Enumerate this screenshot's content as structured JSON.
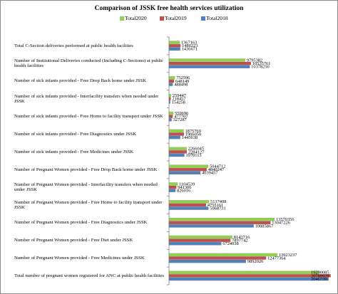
{
  "chart_data": {
    "type": "bar",
    "orientation": "horizontal",
    "title": "Comparison of JSSK free health services utilization",
    "legend_position": "top",
    "categories": [
      "Total C-Section deliveries performed  at public health facilities",
      "Number of Institutional Deliveries conducted (Including C-Sections) at public health facilities",
      "Number of sick infants provided - Free Drop Back home under JSSK",
      "Number of sick infants provided - Interfacility transfers when needed under JSSK",
      "Number of sick infants provided - Free Home to facility transport under JSSK",
      "Number of sick infants provided - Free Diagnostics under JSSK",
      "Number of sick infants provided - Free Medicines under JSSK",
      "Number of Pregnant Women provided - Free Drop Back home under JSSK",
      "Number of Pregnant Women provided - Interfacility transfers when needed under JSSK",
      "Number of Pregnant Women provided - Free Home to facility transport under JSSK",
      "Number of Pregnant Women provided - Free Diagnostics under JSSK",
      "Number of Pregnant Women provided - Free Diet under JSSK",
      "Number of Pregnant Women provided - Free Medicines under JSSK",
      "Total number of pregnant women registered for ANC at public health facilities"
    ],
    "series": [
      {
        "name": "Total2020",
        "color": "#92D050",
        "values": [
          1367163,
          9795382,
          752596,
          259447,
          559696,
          1875769,
          2266045,
          5044712,
          1104539,
          5137408,
          13570356,
          8143716,
          13923237,
          19290085
        ],
        "labels": [
          "1367163",
          "9795382",
          "752596",
          "259447",
          "559696",
          "1875769",
          "2266045",
          "5044712",
          "1104539",
          "5137408",
          "13570356",
          "8143716",
          "13923237",
          "19290085"
        ]
      },
      {
        "name": "Total2019",
        "color": "#C0504D",
        "values": [
          1480223,
          10535761,
          648149,
          218457,
          477707,
          1906050,
          2284127,
          4840247,
          941306,
          4755161,
          13047226,
          7897742,
          12477364,
          20789929
        ],
        "labels": [
          "1480223",
          "10535761",
          "648149",
          "218457",
          "477707",
          "1906050",
          "2284127",
          "4840247",
          "941306",
          "4755161",
          "13047226",
          "7897742",
          "12477364",
          "20789929"
        ]
      },
      {
        "name": "Total2018",
        "color": "#4F81BD",
        "values": [
          1436671,
          10378250,
          488498,
          154258,
          327287,
          1445638,
          1970113,
          4039457,
          826016,
          5068731,
          10885867,
          6724038,
          9892026,
          20467391
        ],
        "labels": [
          "1436671",
          "10378250",
          "488498",
          "154258",
          "327287",
          "1445638",
          "1970113",
          "4039457",
          "826016",
          "5068731",
          "10885867",
          "6724038",
          "9892026",
          "20467391"
        ]
      }
    ],
    "xlim": [
      0,
      21000000
    ],
    "grid": false
  }
}
